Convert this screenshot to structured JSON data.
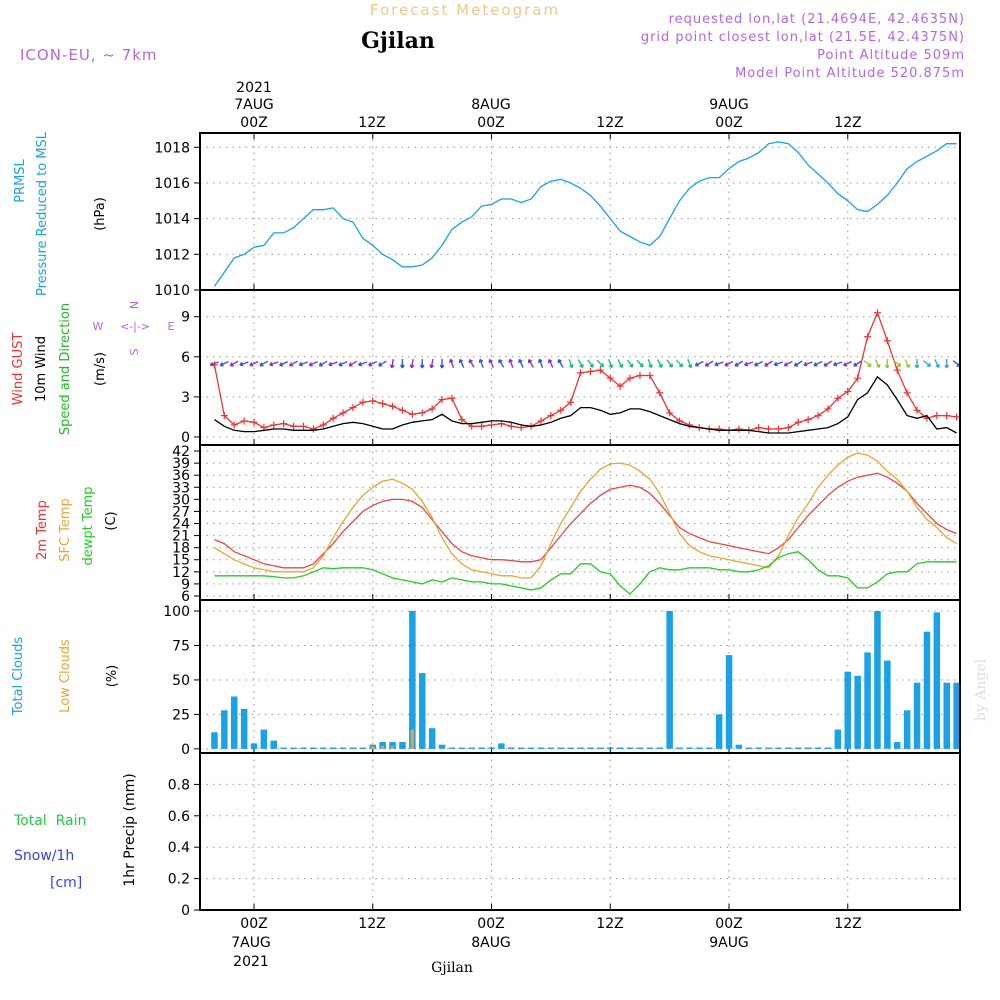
{
  "header": {
    "title": "Forecast Meteogram",
    "location": "Gjilan",
    "model": "ICON-EU, ~ 7km",
    "requested": "requested lon,lat (21.4694E, 42.4635N)",
    "gridpoint": "grid point closest lon,lat (21.5E, 42.4375N)",
    "altitude": "Point Altitude 509m",
    "model_altitude": "Model Point Altitude 520.875m",
    "footer_location": "Gjilan",
    "credit": "by Angel"
  },
  "time_axis": {
    "top_year": "2021",
    "dates": [
      "7AUG",
      "8AUG",
      "9AUG"
    ],
    "hours": [
      "00Z",
      "12Z",
      "00Z",
      "12Z",
      "00Z",
      "12Z"
    ],
    "bottom_year": "2021"
  },
  "panels": {
    "pressure": {
      "label": "PRMSL",
      "label2": "Pressure Reduced to MSL",
      "unit": "(hPa)",
      "color": "#1aa1e6"
    },
    "wind": {
      "label_gust": "Wind GUST",
      "label_wind": "10m Wind",
      "label_dir": "Speed and Direction",
      "unit": "(m/s)",
      "compass_n": "N",
      "compass_s": "S",
      "compass_w": "W",
      "compass_e": "E",
      "compass_glyph": "<-|->",
      "gust_color": "#ee3333",
      "wind_color": "#000000",
      "dir_color": "#22bb22"
    },
    "temp": {
      "label_2m": "2m Temp",
      "label_sfc": "SFC Temp",
      "label_dew": "dewpt Temp",
      "unit": "(C)",
      "t2m_color": "#ee4444",
      "sfc_color": "#e6a633",
      "dew_color": "#22cc22"
    },
    "clouds": {
      "label_total": "Total Clouds",
      "label_low": "Low Clouds",
      "unit": "(%)",
      "total_color": "#1aa1e6",
      "low_color": "#e6a633"
    },
    "precip": {
      "label_rain": "Total  Rain",
      "label_snow": "Snow/1h",
      "label_snow_unit": "[cm]",
      "unit": "1hr Precip (mm)",
      "rain_color": "#22cc44",
      "snow_color": "#3344ee"
    }
  },
  "chart_data": [
    {
      "type": "line",
      "name": "pressure",
      "x_unit": "hours after 2021-08-07 00Z",
      "x": [
        -4,
        -3,
        -2,
        -1,
        0,
        1,
        2,
        3,
        4,
        5,
        6,
        7,
        8,
        9,
        10,
        11,
        12,
        13,
        14,
        15,
        16,
        17,
        18,
        19,
        20,
        21,
        22,
        23,
        24,
        25,
        26,
        27,
        28,
        29,
        30,
        31,
        32,
        33,
        34,
        35,
        36,
        37,
        38,
        39,
        40,
        41,
        42,
        43,
        44,
        45,
        46,
        47,
        48,
        49,
        50,
        51,
        52,
        53,
        54,
        55,
        56,
        57,
        58,
        59,
        60,
        61,
        62,
        63,
        64,
        65,
        66,
        67,
        68,
        69,
        70,
        71
      ],
      "series": [
        {
          "name": "PRMSL",
          "values": [
            1010.2,
            1011.0,
            1011.8,
            1012.0,
            1012.4,
            1012.5,
            1013.2,
            1013.2,
            1013.5,
            1014.0,
            1014.5,
            1014.5,
            1014.6,
            1014.0,
            1013.8,
            1012.9,
            1012.5,
            1012.0,
            1011.7,
            1011.3,
            1011.3,
            1011.4,
            1011.8,
            1012.5,
            1013.4,
            1013.8,
            1014.1,
            1014.7,
            1014.8,
            1015.1,
            1015.1,
            1014.9,
            1015.1,
            1015.8,
            1016.1,
            1016.2,
            1016.0,
            1015.7,
            1015.3,
            1014.7,
            1014.0,
            1013.3,
            1013.0,
            1012.7,
            1012.5,
            1013.0,
            1014.0,
            1015.0,
            1015.7,
            1016.1,
            1016.3,
            1016.3,
            1016.8,
            1017.2,
            1017.4,
            1017.7,
            1018.2,
            1018.3,
            1018.2,
            1017.7,
            1017.0,
            1016.5,
            1016.0,
            1015.4,
            1015.0,
            1014.5,
            1014.4,
            1014.8,
            1015.3,
            1016.0,
            1016.8,
            1017.2,
            1017.5,
            1017.8,
            1018.2,
            1018.2
          ]
        }
      ],
      "ylim": [
        1010,
        1018.8
      ],
      "yticks": [
        1010,
        1012,
        1014,
        1016,
        1018
      ],
      "grid": true
    },
    {
      "type": "line",
      "name": "wind",
      "x_unit": "hours after 2021-08-07 00Z",
      "x": [
        -4,
        -3,
        -2,
        -1,
        0,
        1,
        2,
        3,
        4,
        5,
        6,
        7,
        8,
        9,
        10,
        11,
        12,
        13,
        14,
        15,
        16,
        17,
        18,
        19,
        20,
        21,
        22,
        23,
        24,
        25,
        26,
        27,
        28,
        29,
        30,
        31,
        32,
        33,
        34,
        35,
        36,
        37,
        38,
        39,
        40,
        41,
        42,
        43,
        44,
        45,
        46,
        47,
        48,
        49,
        50,
        51,
        52,
        53,
        54,
        55,
        56,
        57,
        58,
        59,
        60,
        61,
        62,
        63,
        64,
        65,
        66,
        67,
        68,
        69,
        70,
        71
      ],
      "series": [
        {
          "name": "Wind GUST",
          "values": [
            5.4,
            1.6,
            0.9,
            1.2,
            1.1,
            0.7,
            0.9,
            1.0,
            0.8,
            0.8,
            0.6,
            0.9,
            1.4,
            1.8,
            2.2,
            2.6,
            2.7,
            2.5,
            2.3,
            2.0,
            1.7,
            1.8,
            2.1,
            2.8,
            2.9,
            1.3,
            0.8,
            0.8,
            0.9,
            1.0,
            0.8,
            0.7,
            0.8,
            1.2,
            1.6,
            2.0,
            2.6,
            4.8,
            4.9,
            5.0,
            4.4,
            3.8,
            4.4,
            4.6,
            4.6,
            3.3,
            1.8,
            1.2,
            0.9,
            0.7,
            0.6,
            0.6,
            0.5,
            0.6,
            0.5,
            0.7,
            0.6,
            0.6,
            0.7,
            1.1,
            1.3,
            1.6,
            2.1,
            2.9,
            3.4,
            4.4,
            7.5,
            9.3,
            7.2,
            5.0,
            3.3,
            2.0,
            1.4,
            1.6,
            1.6,
            1.5
          ]
        },
        {
          "name": "10m Wind",
          "values": [
            1.3,
            0.8,
            0.5,
            0.4,
            0.4,
            0.5,
            0.6,
            0.6,
            0.5,
            0.5,
            0.5,
            0.6,
            0.8,
            1.0,
            1.1,
            1.0,
            0.8,
            0.6,
            0.6,
            0.9,
            1.1,
            1.2,
            1.3,
            1.7,
            1.2,
            1.0,
            1.0,
            1.1,
            1.2,
            1.2,
            1.1,
            0.9,
            0.8,
            0.9,
            1.1,
            1.4,
            1.6,
            2.2,
            2.2,
            2.0,
            1.7,
            1.8,
            2.1,
            2.1,
            1.9,
            1.6,
            1.3,
            1.0,
            0.8,
            0.7,
            0.6,
            0.5,
            0.5,
            0.5,
            0.5,
            0.4,
            0.3,
            0.3,
            0.3,
            0.4,
            0.5,
            0.6,
            0.7,
            1.0,
            1.5,
            2.8,
            3.3,
            4.5,
            3.9,
            2.8,
            1.6,
            1.4,
            1.6,
            0.6,
            0.7,
            0.3
          ]
        }
      ],
      "direction_arrows": "wind direction arrows drawn along 5.5 m/s reference line",
      "ylim": [
        -0.6,
        11
      ],
      "yticks": [
        0,
        3,
        6,
        9
      ],
      "grid": true
    },
    {
      "type": "line",
      "name": "temperature",
      "x_unit": "hours after 2021-08-07 00Z",
      "x": [
        -4,
        -3,
        -2,
        -1,
        0,
        1,
        2,
        3,
        4,
        5,
        6,
        7,
        8,
        9,
        10,
        11,
        12,
        13,
        14,
        15,
        16,
        17,
        18,
        19,
        20,
        21,
        22,
        23,
        24,
        25,
        26,
        27,
        28,
        29,
        30,
        31,
        32,
        33,
        34,
        35,
        36,
        37,
        38,
        39,
        40,
        41,
        42,
        43,
        44,
        45,
        46,
        47,
        48,
        49,
        50,
        51,
        52,
        53,
        54,
        55,
        56,
        57,
        58,
        59,
        60,
        61,
        62,
        63,
        64,
        65,
        66,
        67,
        68,
        69,
        70,
        71
      ],
      "series": [
        {
          "name": "2m Temp",
          "values": [
            20,
            19,
            17,
            16,
            15,
            14,
            13.5,
            13,
            13,
            13,
            14,
            16.5,
            19,
            22,
            24.5,
            27,
            28.5,
            29.5,
            30,
            30,
            29.5,
            28,
            25,
            22,
            19,
            17,
            16,
            15.5,
            15,
            15,
            14.8,
            14.5,
            14.5,
            15,
            18,
            21,
            24,
            26.5,
            29,
            31,
            32.5,
            33,
            33.5,
            33,
            31.5,
            29,
            26,
            23,
            21.5,
            20.5,
            19.5,
            19,
            18.5,
            18,
            17.5,
            17,
            16.5,
            18,
            20,
            23,
            26,
            28.5,
            31,
            33,
            34.5,
            35.5,
            36,
            36.5,
            35.5,
            34,
            32,
            29,
            26.5,
            24,
            22.5,
            21.5
          ]
        },
        {
          "name": "SFC Temp",
          "values": [
            18,
            16.5,
            15,
            14,
            13,
            12.5,
            12,
            12,
            12,
            12,
            13,
            16,
            20.5,
            24.5,
            28,
            31,
            33,
            34.5,
            35,
            34,
            32.5,
            29.5,
            25.5,
            20.5,
            16.5,
            14,
            12.5,
            12,
            11.5,
            11,
            11,
            10.5,
            10.5,
            13.5,
            19,
            24,
            28,
            32,
            35,
            37.5,
            38.8,
            39,
            38.5,
            37,
            35,
            31.5,
            26.5,
            21.5,
            18.5,
            17,
            16,
            15.5,
            15,
            14.5,
            14,
            13.5,
            13,
            16,
            21,
            25.5,
            29,
            33,
            36,
            38.5,
            40.5,
            41.5,
            41,
            39.5,
            37,
            35,
            32,
            28,
            25,
            23,
            20.5,
            19
          ]
        },
        {
          "name": "dewpt Temp",
          "values": [
            11,
            11,
            11,
            11,
            11,
            11,
            10.8,
            10.5,
            10.5,
            11,
            12,
            13,
            12.8,
            13,
            13,
            13,
            12.5,
            11.5,
            10.5,
            10,
            9.5,
            9,
            10,
            9.5,
            10.5,
            10,
            9.5,
            9.5,
            9,
            9,
            8.5,
            8,
            7.5,
            8,
            10,
            11.5,
            11.5,
            14,
            14,
            12,
            11.5,
            8.5,
            6.5,
            9,
            12,
            13,
            12.5,
            12.5,
            13,
            13,
            13,
            12.5,
            12.5,
            12,
            12,
            12.5,
            13.5,
            15.5,
            16.5,
            17,
            15,
            12.5,
            11,
            11,
            10.5,
            8,
            8,
            9.5,
            11.5,
            12,
            12,
            14,
            14.5,
            14.5,
            14.5,
            14.5
          ]
        }
      ],
      "ylim": [
        5,
        43.5
      ],
      "yticks": [
        6,
        9,
        12,
        15,
        18,
        21,
        24,
        27,
        30,
        33,
        36,
        39,
        42
      ],
      "grid": true
    },
    {
      "type": "bar",
      "name": "clouds",
      "x_unit": "hours after 2021-08-07 00Z",
      "x": [
        -4,
        -3,
        -2,
        -1,
        0,
        1,
        2,
        3,
        4,
        5,
        6,
        7,
        8,
        9,
        10,
        11,
        12,
        13,
        14,
        15,
        16,
        17,
        18,
        19,
        20,
        21,
        22,
        23,
        24,
        25,
        26,
        27,
        28,
        29,
        30,
        31,
        32,
        33,
        34,
        35,
        36,
        37,
        38,
        39,
        40,
        41,
        42,
        43,
        44,
        45,
        46,
        47,
        48,
        49,
        50,
        51,
        52,
        53,
        54,
        55,
        56,
        57,
        58,
        59,
        60,
        61,
        62,
        63,
        64,
        65,
        66,
        67,
        68,
        69,
        70,
        71
      ],
      "series": [
        {
          "name": "Total Clouds",
          "values": [
            12,
            28,
            38,
            29,
            4,
            14,
            6,
            1,
            1,
            1,
            1,
            1,
            1,
            1,
            1,
            1,
            3,
            5,
            5,
            5,
            100,
            55,
            15,
            3,
            1,
            1,
            1,
            1,
            1,
            4,
            1,
            1,
            1,
            1,
            1,
            1,
            1,
            1,
            1,
            1,
            1,
            1,
            1,
            1,
            1,
            1,
            100,
            1,
            1,
            1,
            1,
            25,
            68,
            3,
            1,
            1,
            1,
            1,
            1,
            1,
            1,
            1,
            1,
            14,
            56,
            53,
            70,
            100,
            64,
            5,
            28,
            48,
            85,
            99,
            48,
            48
          ]
        },
        {
          "name": "Low Clouds",
          "values": [
            0,
            0,
            0,
            0,
            0,
            0,
            0,
            0,
            0,
            0,
            0,
            0,
            0,
            0,
            0,
            0,
            2,
            2,
            2,
            0,
            14,
            0,
            0,
            0,
            0,
            0,
            0,
            0,
            0,
            0,
            0,
            0,
            0,
            0,
            0,
            0,
            0,
            0,
            0,
            0,
            0,
            0,
            0,
            0,
            0,
            0,
            0,
            0,
            0,
            0,
            0,
            0,
            0,
            0,
            0,
            0,
            0,
            0,
            0,
            0,
            0,
            0,
            0,
            0,
            0,
            0,
            0,
            0,
            0,
            0,
            0,
            0,
            0,
            0,
            0,
            0
          ]
        }
      ],
      "ylim": [
        -3,
        108
      ],
      "yticks": [
        0,
        25,
        50,
        75,
        100
      ],
      "grid": true
    },
    {
      "type": "bar",
      "name": "precipitation",
      "x_unit": "hours after 2021-08-07 00Z",
      "series": [
        {
          "name": "Total Rain",
          "values": []
        },
        {
          "name": "Snow/1h",
          "values": []
        }
      ],
      "ylim": [
        0,
        1.0
      ],
      "yticks": [
        0,
        0.2,
        0.4,
        0.6,
        0.8
      ],
      "grid": true
    }
  ]
}
